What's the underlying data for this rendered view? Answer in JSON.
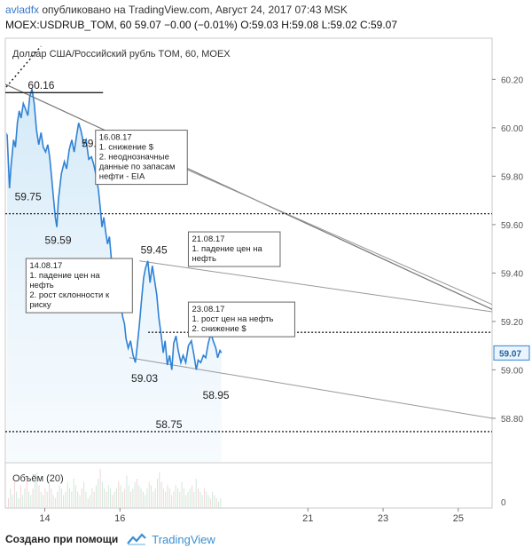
{
  "header": {
    "author": "avladfx",
    "published": "опубликовано на TradingView.com, Август 24, 2017 07:43 MSK",
    "ohlc_line": "MOEX:USDRUB_TOM, 60  59.07 −0.00 (−0.01%) O:59.03 H:59.08 L:59.02 C:59.07"
  },
  "footer": {
    "created_with": "Создано при помощи",
    "brand": "TradingView"
  },
  "chart_data": {
    "type": "line",
    "title": "Доллар США/Российский рубль TOM, 60, MOEX",
    "x_ticks": [
      {
        "label": "14",
        "x": 14
      },
      {
        "label": "16",
        "x": 16
      },
      {
        "label": "21",
        "x": 21
      },
      {
        "label": "23",
        "x": 23
      },
      {
        "label": "25",
        "x": 25
      }
    ],
    "xlim": [
      12.95,
      25.9
    ],
    "ylim": [
      58.62,
      60.37
    ],
    "y_ticks": [
      "60.20",
      "60.00",
      "59.80",
      "59.60",
      "59.40",
      "59.20",
      "59.00",
      "58.80"
    ],
    "last_price": "59.07",
    "volume_label": "Объём (20)",
    "volume_tick": "0",
    "series": [
      {
        "points": [
          [
            13.0,
            59.97
          ],
          [
            13.03,
            59.86
          ],
          [
            13.06,
            59.75
          ],
          [
            13.1,
            59.84
          ],
          [
            13.17,
            59.95
          ],
          [
            13.22,
            59.92
          ],
          [
            13.27,
            60.02
          ],
          [
            13.32,
            60.07
          ],
          [
            13.37,
            60.04
          ],
          [
            13.43,
            60.1
          ],
          [
            13.48,
            60.08
          ],
          [
            13.55,
            60.05
          ],
          [
            13.6,
            60.13
          ],
          [
            13.66,
            60.16
          ],
          [
            13.72,
            60.1
          ],
          [
            13.78,
            59.99
          ],
          [
            13.84,
            59.93
          ],
          [
            13.9,
            59.98
          ],
          [
            13.96,
            59.92
          ],
          [
            14.02,
            59.9
          ],
          [
            14.08,
            59.93
          ],
          [
            14.13,
            59.88
          ],
          [
            14.18,
            59.8
          ],
          [
            14.23,
            59.71
          ],
          [
            14.28,
            59.63
          ],
          [
            14.32,
            59.59
          ],
          [
            14.36,
            59.7
          ],
          [
            14.44,
            59.81
          ],
          [
            14.52,
            59.86
          ],
          [
            14.58,
            59.83
          ],
          [
            14.65,
            59.91
          ],
          [
            14.72,
            59.95
          ],
          [
            14.78,
            59.9
          ],
          [
            14.85,
            59.97
          ],
          [
            14.9,
            60.02
          ],
          [
            14.96,
            59.99
          ],
          [
            15.04,
            59.93
          ],
          [
            15.1,
            59.95
          ],
          [
            15.17,
            59.87
          ],
          [
            15.24,
            59.88
          ],
          [
            15.3,
            59.85
          ],
          [
            15.37,
            59.8
          ],
          [
            15.43,
            59.74
          ],
          [
            15.48,
            59.66
          ],
          [
            15.52,
            59.59
          ],
          [
            15.57,
            59.63
          ],
          [
            15.62,
            59.57
          ],
          [
            15.67,
            59.52
          ],
          [
            15.72,
            59.55
          ],
          [
            15.78,
            59.44
          ],
          [
            15.83,
            59.42
          ],
          [
            15.88,
            59.36
          ],
          [
            15.93,
            59.3
          ],
          [
            15.98,
            59.35
          ],
          [
            16.02,
            59.27
          ],
          [
            16.07,
            59.22
          ],
          [
            16.12,
            59.19
          ],
          [
            16.16,
            59.13
          ],
          [
            16.22,
            59.09
          ],
          [
            16.28,
            59.12
          ],
          [
            16.35,
            59.06
          ],
          [
            16.41,
            59.03
          ],
          [
            16.46,
            59.1
          ],
          [
            16.52,
            59.19
          ],
          [
            16.58,
            59.3
          ],
          [
            16.63,
            59.38
          ],
          [
            16.68,
            59.42
          ],
          [
            16.74,
            59.45
          ],
          [
            16.8,
            59.36
          ],
          [
            16.86,
            59.43
          ],
          [
            16.92,
            59.37
          ],
          [
            16.98,
            59.31
          ],
          [
            17.03,
            59.22
          ],
          [
            17.1,
            59.14
          ],
          [
            17.15,
            59.07
          ],
          [
            17.2,
            59.12
          ],
          [
            17.26,
            59.02
          ],
          [
            17.32,
            59.06
          ],
          [
            17.38,
            59.0
          ],
          [
            17.43,
            59.11
          ],
          [
            17.49,
            59.14
          ],
          [
            17.55,
            59.08
          ],
          [
            17.62,
            59.03
          ],
          [
            17.68,
            59.06
          ],
          [
            17.75,
            59.03
          ],
          [
            17.82,
            59.1
          ],
          [
            17.9,
            59.12
          ],
          [
            17.97,
            59.06
          ],
          [
            18.03,
            59.0
          ],
          [
            18.08,
            59.04
          ],
          [
            18.15,
            59.03
          ],
          [
            18.22,
            59.06
          ],
          [
            18.28,
            59.05
          ],
          [
            18.35,
            59.11
          ],
          [
            18.42,
            59.15
          ],
          [
            18.48,
            59.12
          ],
          [
            18.55,
            59.09
          ],
          [
            18.6,
            59.05
          ],
          [
            18.66,
            59.08
          ],
          [
            18.7,
            59.07
          ]
        ]
      }
    ],
    "hlines": [
      {
        "label": "60.16",
        "y": 60.145
      },
      {
        "label": "59.59",
        "y": 59.645
      },
      {
        "label": "59.15",
        "y": 59.155
      },
      {
        "label": "58.75",
        "y": 58.745
      }
    ],
    "point_labels": [
      {
        "text": "60.16",
        "x": 13.55,
        "y": 60.16
      },
      {
        "text": "59.59",
        "x": 14.98,
        "y": 59.92
      },
      {
        "text": "59.75",
        "x": 13.2,
        "y": 59.7
      },
      {
        "text": "59.59",
        "x": 14.0,
        "y": 59.52
      },
      {
        "text": "59.45",
        "x": 16.55,
        "y": 59.48
      },
      {
        "text": "59.03",
        "x": 16.3,
        "y": 58.95
      },
      {
        "text": "58.95",
        "x": 18.2,
        "y": 58.88
      },
      {
        "text": "58.75",
        "x": 16.95,
        "y": 58.76
      }
    ],
    "annotations": [
      {
        "lines": [
          "14.08.17",
          "1. падение цен на",
          "нефть",
          "2. рост склонности к",
          "риску"
        ],
        "x": 13.5,
        "y": 59.46
      },
      {
        "lines": [
          "16.08.17",
          "1. снижение $",
          "2. неоднозначные",
          "данные по запасам",
          "нефти - EIA"
        ],
        "x": 15.35,
        "y": 59.99
      },
      {
        "lines": [
          "21.08.17",
          "1. падение цен на",
          "нефть"
        ],
        "x": 17.82,
        "y": 59.57
      },
      {
        "lines": [
          "23.08.17",
          "1. рост цен на нефть",
          "2. снижение $"
        ],
        "x": 17.82,
        "y": 59.28
      }
    ],
    "trend_lines": [
      [
        [
          12.95,
          60.18
        ],
        [
          25.9,
          59.25
        ]
      ],
      [
        [
          15.55,
          59.98
        ],
        [
          25.9,
          59.27
        ]
      ],
      [
        [
          16.52,
          59.45
        ],
        [
          25.9,
          59.24
        ]
      ],
      [
        [
          16.25,
          59.05
        ],
        [
          25.9,
          58.8
        ]
      ]
    ],
    "volume": [
      3,
      6,
      4,
      8,
      5,
      3,
      7,
      4,
      6,
      9,
      5,
      4,
      6,
      8,
      11,
      7,
      5,
      4,
      6,
      5,
      8,
      6,
      4,
      3,
      5,
      7,
      6,
      4,
      5,
      8,
      6,
      5,
      9,
      7,
      5,
      4,
      6,
      8,
      5,
      3,
      4,
      6,
      5,
      7,
      9,
      12,
      8,
      6,
      5,
      7,
      6,
      4,
      5,
      6,
      8,
      7,
      5,
      6,
      10,
      7,
      5,
      6,
      8,
      9,
      7,
      6,
      5,
      4,
      6,
      8,
      7,
      5,
      6,
      9,
      11,
      8,
      6,
      5,
      7,
      6,
      4,
      5,
      7,
      6,
      5,
      8,
      6,
      4,
      5,
      6,
      7,
      5,
      9,
      6,
      5,
      4,
      6,
      5,
      4,
      3,
      5,
      4,
      3,
      2,
      3
    ]
  }
}
